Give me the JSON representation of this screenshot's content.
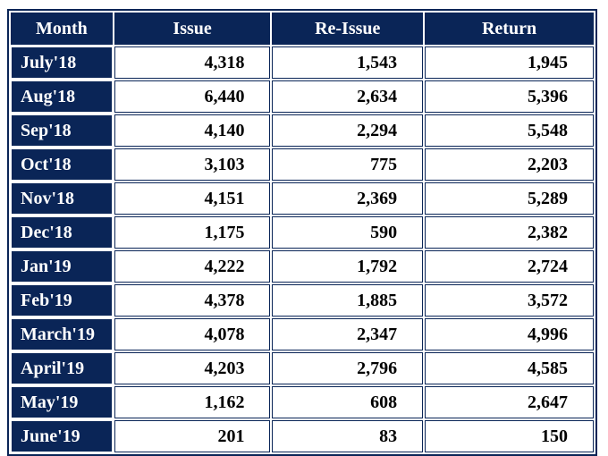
{
  "colors": {
    "navy": "#0a2557",
    "cell_bg": "#ffffff",
    "data_text": "#000000",
    "header_text": "#ffffff"
  },
  "table": {
    "columns": [
      "Month",
      "Issue",
      "Re-Issue",
      "Return"
    ],
    "rows": [
      {
        "month": "July'18",
        "issue": "4,318",
        "reissue": "1,543",
        "return": "1,945"
      },
      {
        "month": "Aug'18",
        "issue": "6,440",
        "reissue": "2,634",
        "return": "5,396"
      },
      {
        "month": "Sep'18",
        "issue": "4,140",
        "reissue": "2,294",
        "return": "5,548"
      },
      {
        "month": "Oct'18",
        "issue": "3,103",
        "reissue": "775",
        "return": "2,203"
      },
      {
        "month": "Nov'18",
        "issue": "4,151",
        "reissue": "2,369",
        "return": "5,289"
      },
      {
        "month": "Dec'18",
        "issue": "1,175",
        "reissue": "590",
        "return": "2,382"
      },
      {
        "month": "Jan'19",
        "issue": "4,222",
        "reissue": "1,792",
        "return": "2,724"
      },
      {
        "month": "Feb'19",
        "issue": "4,378",
        "reissue": "1,885",
        "return": "3,572"
      },
      {
        "month": "March'19",
        "issue": "4,078",
        "reissue": "2,347",
        "return": "4,996"
      },
      {
        "month": "April'19",
        "issue": "4,203",
        "reissue": "2,796",
        "return": "4,585"
      },
      {
        "month": "May'19",
        "issue": "1,162",
        "reissue": "608",
        "return": "2,647"
      },
      {
        "month": "June'19",
        "issue": "201",
        "reissue": "83",
        "return": "150"
      }
    ]
  },
  "chart_data": {
    "type": "table",
    "title": "",
    "categories": [
      "July'18",
      "Aug'18",
      "Sep'18",
      "Oct'18",
      "Nov'18",
      "Dec'18",
      "Jan'19",
      "Feb'19",
      "March'19",
      "April'19",
      "May'19",
      "June'19"
    ],
    "series": [
      {
        "name": "Issue",
        "values": [
          4318,
          6440,
          4140,
          3103,
          4151,
          1175,
          4222,
          4378,
          4078,
          4203,
          1162,
          201
        ]
      },
      {
        "name": "Re-Issue",
        "values": [
          1543,
          2634,
          2294,
          775,
          2369,
          590,
          1792,
          1885,
          2347,
          2796,
          608,
          83
        ]
      },
      {
        "name": "Return",
        "values": [
          1945,
          5396,
          5548,
          2203,
          5289,
          2382,
          2724,
          3572,
          4996,
          4585,
          2647,
          150
        ]
      }
    ]
  }
}
